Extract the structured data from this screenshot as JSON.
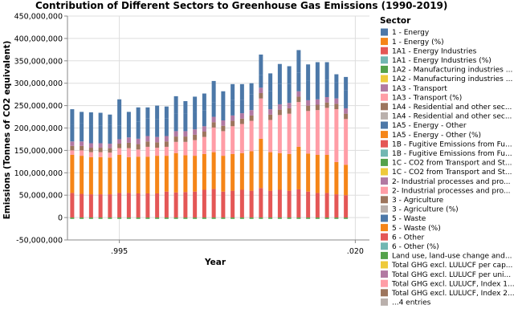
{
  "chart_data": {
    "type": "bar",
    "stacked": true,
    "title": "Contribution of Different Sectors to Greenhouse Gas Emissions (1990-2019)",
    "xlabel": "Year",
    "ylabel": "Emissions (Tonnes of CO2 equivalent)",
    "ylim": [
      -50000000,
      450000000
    ],
    "yticks": [
      -50000000,
      0,
      50000000,
      100000000,
      150000000,
      200000000,
      250000000,
      300000000,
      350000000,
      400000000,
      450000000
    ],
    "ytick_labels": [
      "-50,000,000",
      "0",
      "50,000,000",
      "100,000,000",
      "150,000,000",
      "200,000,000",
      "250,000,000",
      "300,000,000",
      "350,000,000",
      "400,000,000",
      "450,000,000"
    ],
    "xtick_labels": [
      {
        "label": ".995",
        "year": 1995
      },
      {
        "label": ".020",
        "year": 2020
      }
    ],
    "grid": true,
    "legend_position": "right",
    "legend_title": "Sector",
    "years": [
      1990,
      1991,
      1992,
      1993,
      1994,
      1995,
      1996,
      1997,
      1998,
      1999,
      2000,
      2001,
      2002,
      2003,
      2004,
      2005,
      2006,
      2007,
      2008,
      2009,
      2010,
      2011,
      2012,
      2013,
      2014,
      2015,
      2016,
      2017,
      2018,
      2019
    ],
    "negative": {
      "name": "Land use, land-use change and forestry",
      "color": "#54a24b",
      "values": [
        -3000000,
        -3000000,
        -3000000,
        -3000000,
        -3000000,
        -3000000,
        -3000000,
        -3000000,
        -3000000,
        -3000000,
        -3000000,
        -3000000,
        -3000000,
        -3000000,
        -3000000,
        -3000000,
        -3000000,
        -3000000,
        -3000000,
        -3000000,
        -3000000,
        -3000000,
        -3000000,
        -3000000,
        -3000000,
        -3000000,
        -3000000,
        -3000000,
        -3000000,
        -3000000
      ]
    },
    "series": [
      {
        "name": "6 - Other",
        "color": "#e45756",
        "values": [
          55000000,
          53000000,
          52000000,
          52000000,
          52000000,
          55000000,
          55000000,
          54000000,
          54000000,
          54000000,
          58000000,
          56000000,
          57000000,
          58000000,
          62000000,
          64000000,
          58000000,
          60000000,
          62000000,
          60000000,
          66000000,
          60000000,
          62000000,
          60000000,
          63000000,
          58000000,
          55000000,
          55000000,
          52000000,
          50000000
        ]
      },
      {
        "name": "1 - Energy (%)",
        "color": "#f58518",
        "values": [
          85000000,
          85000000,
          83000000,
          83000000,
          82000000,
          85000000,
          80000000,
          82000000,
          82000000,
          84000000,
          80000000,
          88000000,
          82000000,
          80000000,
          80000000,
          82000000,
          80000000,
          82000000,
          82000000,
          88000000,
          110000000,
          86000000,
          82000000,
          82000000,
          95000000,
          85000000,
          85000000,
          85000000,
          72000000,
          68000000
        ]
      },
      {
        "name": "1A3 - Transport (%)",
        "color": "#ff9da6",
        "values": [
          10000000,
          12000000,
          11000000,
          11000000,
          11000000,
          15000000,
          20000000,
          16000000,
          22000000,
          18000000,
          20000000,
          25000000,
          30000000,
          35000000,
          38000000,
          55000000,
          55000000,
          62000000,
          65000000,
          68000000,
          90000000,
          72000000,
          85000000,
          90000000,
          100000000,
          95000000,
          100000000,
          105000000,
          118000000,
          102000000
        ]
      },
      {
        "name": "2- Industrial processes and pro...",
        "color": "#9d755d",
        "values": [
          10000000,
          10000000,
          10000000,
          10000000,
          10000000,
          10000000,
          12000000,
          12000000,
          12000000,
          12000000,
          12000000,
          12000000,
          12000000,
          12000000,
          12000000,
          12000000,
          12000000,
          12000000,
          12000000,
          12000000,
          12000000,
          12000000,
          12000000,
          12000000,
          12000000,
          12000000,
          12000000,
          12000000,
          12000000,
          12000000
        ]
      },
      {
        "name": "3 - Agriculture (%)",
        "color": "#b279a2",
        "values": [
          10000000,
          10000000,
          10000000,
          10000000,
          10000000,
          10000000,
          12000000,
          12000000,
          12000000,
          12000000,
          12000000,
          12000000,
          12000000,
          12000000,
          12000000,
          12000000,
          12000000,
          12000000,
          12000000,
          12000000,
          12000000,
          12000000,
          12000000,
          12000000,
          12000000,
          12000000,
          12000000,
          12000000,
          12000000,
          12000000
        ]
      },
      {
        "name": "5 - Waste",
        "color": "#4c78a8",
        "values": [
          38000000,
          40000000,
          42000000,
          40000000,
          42000000,
          30000000,
          30000000,
          38000000,
          40000000,
          40000000,
          40000000,
          40000000,
          40000000,
          38000000,
          35000000,
          33000000,
          35000000,
          35000000,
          30000000,
          35000000,
          28000000,
          40000000,
          45000000,
          42000000,
          42000000,
          43000000,
          48000000,
          38000000,
          36000000,
          40000000
        ]
      },
      {
        "name": "1 - Energy",
        "color": "#4c78a8",
        "values": [
          34000000,
          26000000,
          27000000,
          28000000,
          23000000,
          59000000,
          27000000,
          32000000,
          24000000,
          30000000,
          26000000,
          38000000,
          27000000,
          35000000,
          38000000,
          47000000,
          30000000,
          35000000,
          35000000,
          25000000,
          46000000,
          40000000,
          45000000,
          40000000,
          50000000,
          37000000,
          35000000,
          40000000,
          18000000,
          30000000
        ]
      }
    ]
  },
  "legend": {
    "title": "Sector",
    "entries": [
      {
        "label": "1 - Energy",
        "color": "#4c78a8"
      },
      {
        "label": "1 - Energy (%)",
        "color": "#f58518"
      },
      {
        "label": "1A1 - Energy Industries",
        "color": "#e45756"
      },
      {
        "label": "1A1 - Energy Industries (%)",
        "color": "#72b7b2"
      },
      {
        "label": "1A2 - Manufacturing industries ...",
        "color": "#54a24b"
      },
      {
        "label": "1A2 - Manufacturing industries ...",
        "color": "#eeca3b"
      },
      {
        "label": "1A3 - Transport",
        "color": "#b279a2"
      },
      {
        "label": "1A3 - Transport (%)",
        "color": "#ff9da6"
      },
      {
        "label": "1A4 - Residential and other sec...",
        "color": "#9d755d"
      },
      {
        "label": "1A4 - Residential and other sec...",
        "color": "#bab0ac"
      },
      {
        "label": "1A5 - Energy - Other",
        "color": "#4c78a8"
      },
      {
        "label": "1A5 - Energy - Other (%)",
        "color": "#f58518"
      },
      {
        "label": "1B - Fugitive Emissions from Fu...",
        "color": "#e45756"
      },
      {
        "label": "1B - Fugitive Emissions from Fu...",
        "color": "#72b7b2"
      },
      {
        "label": "1C - CO2 from Transport and St...",
        "color": "#54a24b"
      },
      {
        "label": "1C - CO2 from Transport and St...",
        "color": "#eeca3b"
      },
      {
        "label": "2- Industrial processes and pro...",
        "color": "#b279a2"
      },
      {
        "label": "2- Industrial processes and pro...",
        "color": "#ff9da6"
      },
      {
        "label": "3 - Agriculture",
        "color": "#9d755d"
      },
      {
        "label": "3 - Agriculture (%)",
        "color": "#bab0ac"
      },
      {
        "label": "5 - Waste",
        "color": "#4c78a8"
      },
      {
        "label": "5 - Waste (%)",
        "color": "#f58518"
      },
      {
        "label": "6 - Other",
        "color": "#e45756"
      },
      {
        "label": "6 - Other (%)",
        "color": "#72b7b2"
      },
      {
        "label": "Land use, land-use change and...",
        "color": "#54a24b"
      },
      {
        "label": "Total GHG excl. LULUCF per cap...",
        "color": "#eeca3b"
      },
      {
        "label": "Total GHG excl. LULUCF per uni...",
        "color": "#b279a2"
      },
      {
        "label": "Total GHG excl. LULUCF, Index 1...",
        "color": "#ff9da6"
      },
      {
        "label": "Total GHG excl. LULUCF, Index 2...",
        "color": "#9d755d"
      },
      {
        "label": "...4 entries",
        "color": "#bab0ac"
      }
    ]
  }
}
